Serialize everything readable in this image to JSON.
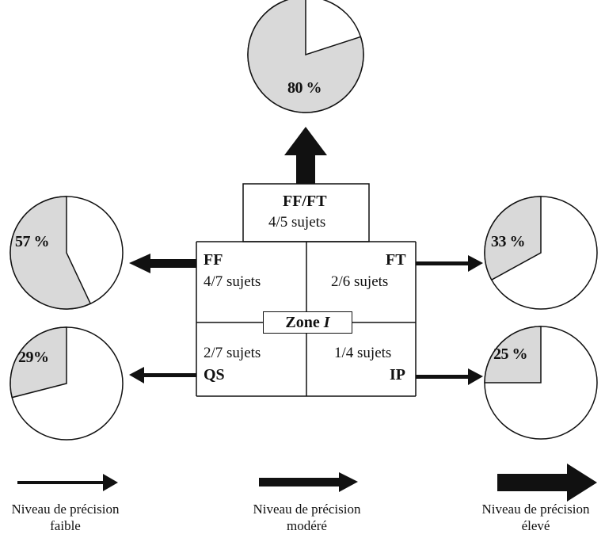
{
  "pies": {
    "top": {
      "label": "80 %",
      "percent": 80
    },
    "left_upper": {
      "label": "57 %",
      "percent": 57
    },
    "left_lower": {
      "label": "29%",
      "percent": 29
    },
    "right_upper": {
      "label": "33 %",
      "percent": 33
    },
    "right_lower": {
      "label": "25 %",
      "percent": 25
    }
  },
  "top_box": {
    "title": "FF/FT",
    "subjects": "4/5 sujets"
  },
  "quadrants": {
    "ff": {
      "code": "FF",
      "subjects": "4/7 sujets"
    },
    "ft": {
      "code": "FT",
      "subjects": "2/6 sujets"
    },
    "qs": {
      "code": "QS",
      "subjects": "2/7 sujets"
    },
    "ip": {
      "code": "IP",
      "subjects": "1/4 sujets"
    }
  },
  "zone": {
    "word": "Zone",
    "letter": "I"
  },
  "legend": {
    "low": {
      "line1": "Niveau de précision",
      "line2": "faible"
    },
    "moderate": {
      "line1": "Niveau de précision",
      "line2": "modéré"
    },
    "high": {
      "line1": "Niveau de précision",
      "line2": "élevé"
    }
  },
  "colors": {
    "filled_slice": "#d9d9d9",
    "outline": "#111111"
  }
}
